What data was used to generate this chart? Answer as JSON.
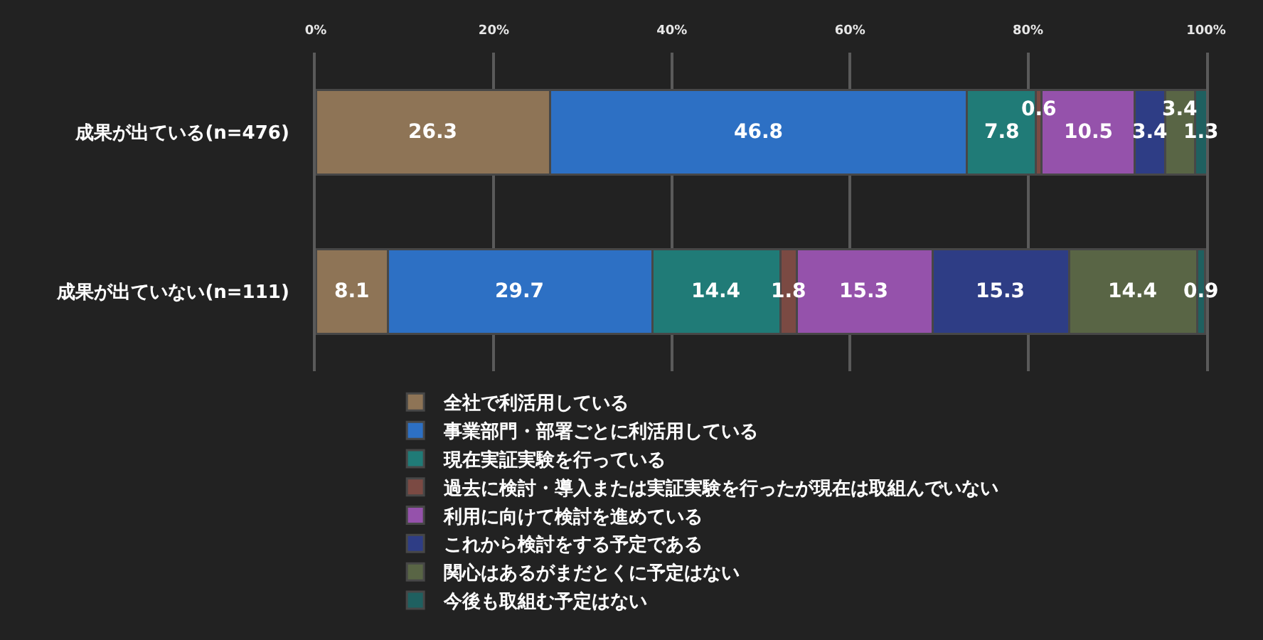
{
  "chart_data": {
    "type": "bar",
    "orientation": "horizontal",
    "stacked": true,
    "categories": [
      "成果が出ている(n=476)",
      "成果が出ていない(n=111)"
    ],
    "series": [
      {
        "name": "全社で利活用している",
        "color": "#8e7456",
        "values": [
          26.3,
          8.1
        ]
      },
      {
        "name": "事業部門・部署ごとに利活用している",
        "color": "#2d70c4",
        "values": [
          46.8,
          29.7
        ]
      },
      {
        "name": "現在実証実験を行っている",
        "color": "#207b77",
        "values": [
          7.8,
          14.4
        ]
      },
      {
        "name": "過去に検討・導入または実証実験を行ったが現在は取組んでいない",
        "color": "#7b4a43",
        "values": [
          0.6,
          1.8
        ]
      },
      {
        "name": "利用に向けて検討を進めている",
        "color": "#9552ab",
        "values": [
          10.5,
          15.3
        ]
      },
      {
        "name": "これから検討をする予定である",
        "color": "#2e3d85",
        "values": [
          3.4,
          15.3
        ]
      },
      {
        "name": "関心はあるがまだとくに予定はない",
        "color": "#596545",
        "values": [
          3.4,
          14.4
        ]
      },
      {
        "name": "今後も取組む予定はない",
        "color": "#1f6060",
        "values": [
          1.3,
          0.9
        ]
      }
    ],
    "xlim": [
      0,
      100
    ],
    "xticks": [
      {
        "value": 0,
        "label": "0%"
      },
      {
        "value": 20,
        "label": "20%"
      },
      {
        "value": 40,
        "label": "40%"
      },
      {
        "value": 60,
        "label": "60%"
      },
      {
        "value": 80,
        "label": "80%"
      },
      {
        "value": 100,
        "label": "100%"
      }
    ],
    "grid": "x",
    "legend": "bottom",
    "data_labels": true
  }
}
